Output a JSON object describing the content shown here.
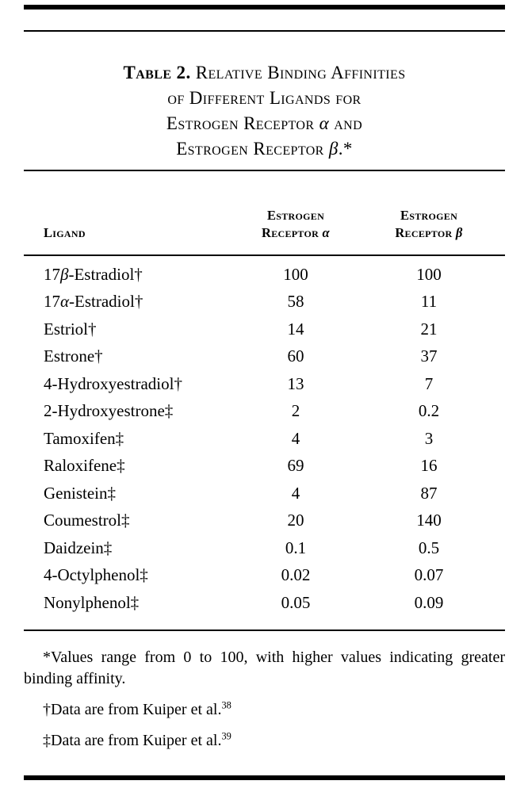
{
  "colors": {
    "background": "#ffffff",
    "text": "#000000",
    "rule": "#000000"
  },
  "title": {
    "lines": [
      [
        {
          "t": "Table 2. ",
          "s": "bold-sc"
        },
        {
          "t": "Relative Binding Affinities",
          "s": "sc"
        }
      ],
      [
        {
          "t": "of Different Ligands for",
          "s": "sc"
        }
      ],
      [
        {
          "t": "Estrogen Receptor ",
          "s": "sc"
        },
        {
          "t": "α",
          "s": "greek"
        },
        {
          "t": " and",
          "s": "sc"
        }
      ],
      [
        {
          "t": "Estrogen Receptor ",
          "s": "sc"
        },
        {
          "t": "β",
          "s": "greek"
        },
        {
          "t": ".*",
          "s": "sc"
        }
      ]
    ]
  },
  "header": {
    "col1": "Ligand",
    "col2": {
      "line1": "Estrogen",
      "line2_pre": "Receptor ",
      "line2_greek": "α"
    },
    "col3": {
      "line1": "Estrogen",
      "line2_pre": "Receptor ",
      "line2_greek": "β"
    }
  },
  "rows": [
    {
      "ligand": "17β-Estradiol†",
      "alpha": "100",
      "beta": "100"
    },
    {
      "ligand": "17α-Estradiol†",
      "alpha": "58",
      "beta": "11"
    },
    {
      "ligand": "Estriol†",
      "alpha": "14",
      "beta": "21"
    },
    {
      "ligand": "Estrone†",
      "alpha": "60",
      "beta": "37"
    },
    {
      "ligand": "4-Hydroxyestradiol†",
      "alpha": "13",
      "beta": "7"
    },
    {
      "ligand": "2-Hydroxyestrone‡",
      "alpha": "2",
      "beta": "0.2"
    },
    {
      "ligand": "Tamoxifen‡",
      "alpha": "4",
      "beta": "3"
    },
    {
      "ligand": "Raloxifene‡",
      "alpha": "69",
      "beta": "16"
    },
    {
      "ligand": "Genistein‡",
      "alpha": "4",
      "beta": "87"
    },
    {
      "ligand": "Coumestrol‡",
      "alpha": "20",
      "beta": "140"
    },
    {
      "ligand": "Daidzein‡",
      "alpha": "0.1",
      "beta": "0.5"
    },
    {
      "ligand": "4-Octylphenol‡",
      "alpha": "0.02",
      "beta": "0.07"
    },
    {
      "ligand": "Nonylphenol‡",
      "alpha": "0.05",
      "beta": "0.09"
    }
  ],
  "footnotes": [
    {
      "text": "*Values range from 0 to 100, with higher values indicating greater binding affinity.",
      "sup": ""
    },
    {
      "text": "†Data are from Kuiper et al.",
      "sup": "38"
    },
    {
      "text": "‡Data are from Kuiper et al.",
      "sup": "39"
    }
  ]
}
